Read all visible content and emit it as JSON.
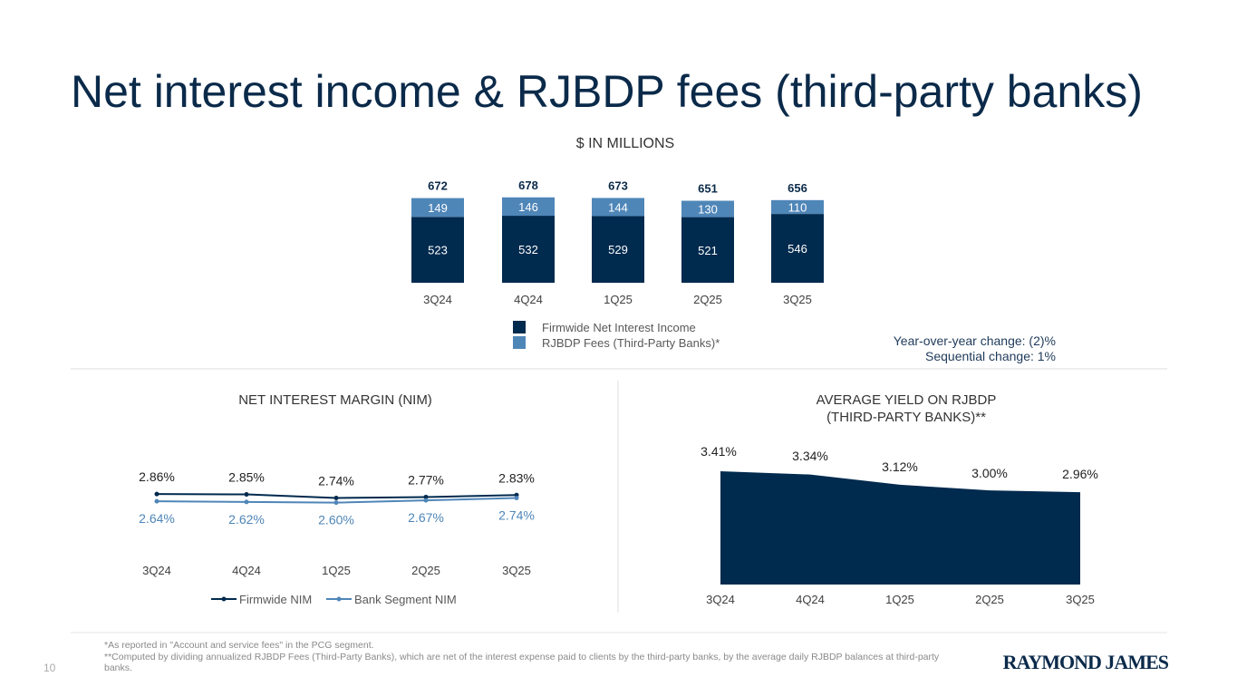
{
  "title": "Net interest income & RJBDP fees (third-party banks)",
  "page_number": "10",
  "logo": "RAYMOND JAMES",
  "colors": {
    "navy": "#002a4e",
    "light_blue": "#4f86b8",
    "title": "#0b2a4a"
  },
  "chart_data": [
    {
      "type": "bar",
      "stacked": true,
      "title": "$ IN MILLIONS",
      "categories": [
        "3Q24",
        "4Q24",
        "1Q25",
        "2Q25",
        "3Q25"
      ],
      "series": [
        {
          "name": "Firmwide Net Interest Income",
          "values": [
            523,
            532,
            529,
            521,
            546
          ],
          "color": "#002a4e"
        },
        {
          "name": "RJBDP Fees (Third-Party Banks)*",
          "values": [
            149,
            146,
            144,
            130,
            110
          ],
          "color": "#4f86b8"
        }
      ],
      "totals": [
        672,
        678,
        673,
        651,
        656
      ],
      "annotations": [
        "Year-over-year change: (2)%",
        "Sequential change: 1%"
      ],
      "legend": "bottom"
    },
    {
      "type": "line",
      "title": "NET INTEREST MARGIN (NIM)",
      "categories": [
        "3Q24",
        "4Q24",
        "1Q25",
        "2Q25",
        "3Q25"
      ],
      "series": [
        {
          "name": "Firmwide NIM",
          "values": [
            2.86,
            2.85,
            2.74,
            2.77,
            2.83
          ],
          "labels": [
            "2.86%",
            "2.85%",
            "2.74%",
            "2.77%",
            "2.83%"
          ],
          "color": "#002a4e"
        },
        {
          "name": "Bank Segment NIM",
          "values": [
            2.64,
            2.62,
            2.6,
            2.67,
            2.74
          ],
          "labels": [
            "2.64%",
            "2.62%",
            "2.60%",
            "2.67%",
            "2.74%"
          ],
          "color": "#4f86b8"
        }
      ],
      "legend": "bottom"
    },
    {
      "type": "area",
      "title": "AVERAGE YIELD ON RJBDP (THIRD-PARTY BANKS)**",
      "title_lines": [
        "AVERAGE YIELD ON RJBDP",
        "(THIRD-PARTY BANKS)**"
      ],
      "categories": [
        "3Q24",
        "4Q24",
        "1Q25",
        "2Q25",
        "3Q25"
      ],
      "values": [
        3.41,
        3.34,
        3.12,
        3.0,
        2.96
      ],
      "labels": [
        "3.41%",
        "3.34%",
        "3.12%",
        "3.00%",
        "2.96%"
      ],
      "color": "#002a4e"
    }
  ],
  "footnotes": [
    "*As reported in \"Account and service fees\" in the PCG segment.",
    "**Computed by dividing annualized RJBDP Fees (Third-Party Banks), which are net of the interest expense paid to clients by the third-party banks, by the average daily RJBDP balances at third-party banks."
  ]
}
